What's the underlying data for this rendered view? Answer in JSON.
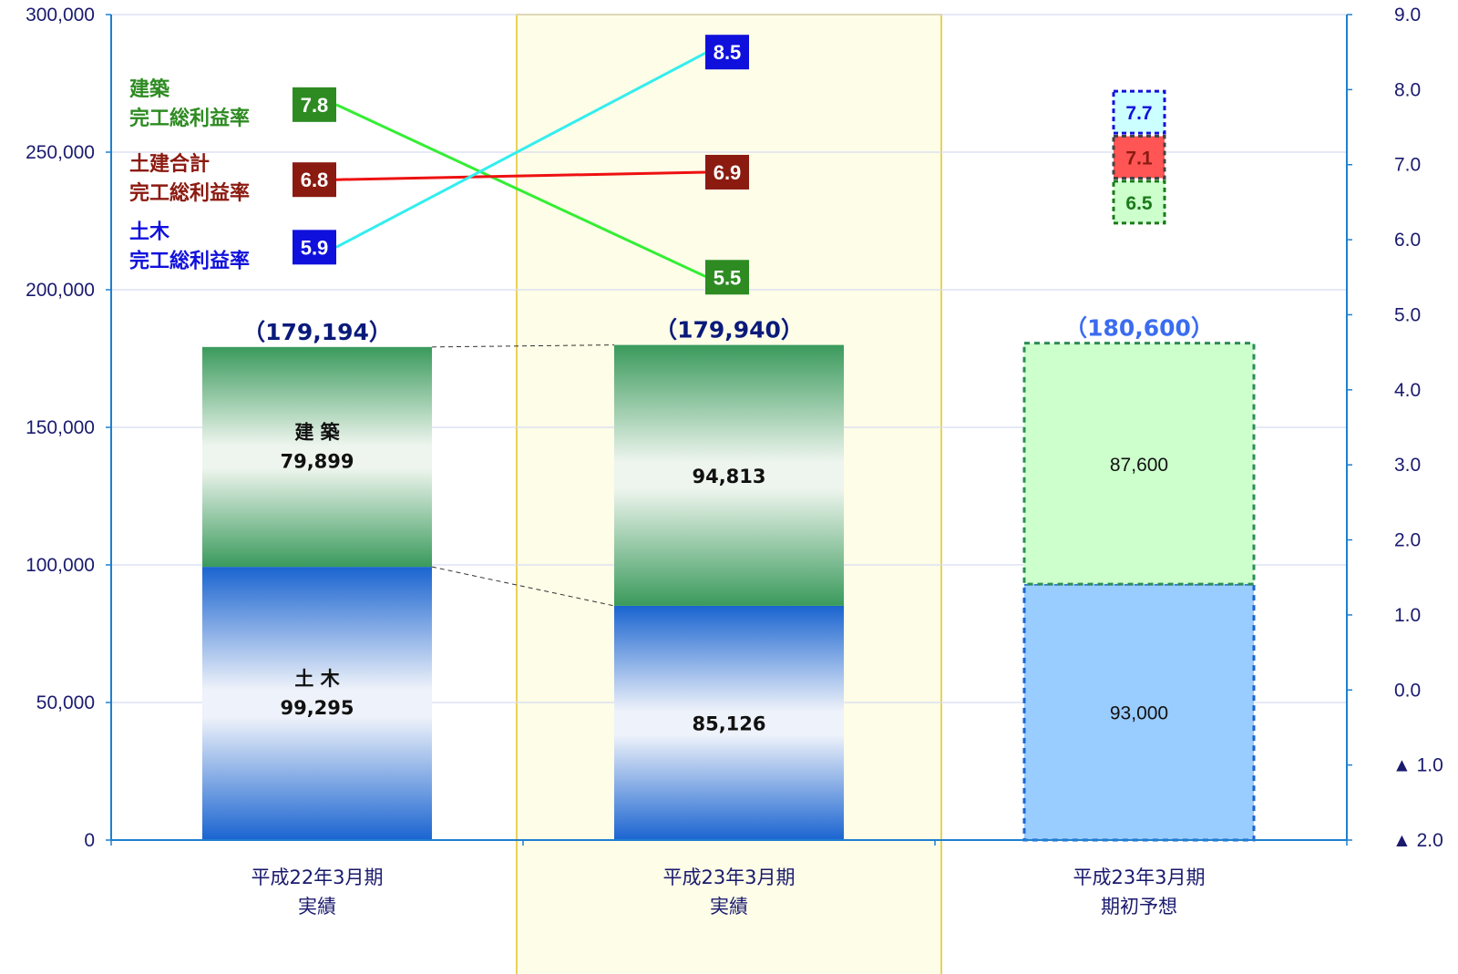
{
  "chart_data": {
    "type": "bar",
    "stacked": true,
    "categories": [
      [
        "平成22年3月期",
        "実績"
      ],
      [
        "平成23年3月期",
        "実績"
      ],
      [
        "平成23年3月期",
        "期初予想"
      ]
    ],
    "left_axis": {
      "ylim": [
        0,
        300000
      ],
      "ticks": [
        "0",
        "50,000",
        "100,000",
        "150,000",
        "200,000",
        "250,000",
        "300,000"
      ],
      "tick_values": [
        0,
        50000,
        100000,
        150000,
        200000,
        250000,
        300000
      ]
    },
    "right_axis": {
      "ylim": [
        -2,
        9
      ],
      "ticks": [
        "▲ 2.0",
        "▲ 1.0",
        "0.0",
        "1.0",
        "2.0",
        "3.0",
        "4.0",
        "5.0",
        "6.0",
        "7.0",
        "8.0",
        "9.0"
      ],
      "tick_values": [
        -2,
        -1,
        0,
        1,
        2,
        3,
        4,
        5,
        6,
        7,
        8,
        9
      ]
    },
    "grid": true,
    "bars": [
      {
        "total": 179194,
        "total_label": "（179,194）",
        "segments": [
          {
            "series": "doboku",
            "value": 99295,
            "label_name": "土 木",
            "label_value": "99,295"
          },
          {
            "series": "kenchiku",
            "value": 79899,
            "label_name": "建 築",
            "label_value": "79,899"
          }
        ]
      },
      {
        "total": 179940,
        "total_label": "（179,940）",
        "segments": [
          {
            "series": "doboku",
            "value": 85126,
            "label_name": "",
            "label_value": "85,126"
          },
          {
            "series": "kenchiku",
            "value": 94813,
            "label_name": "",
            "label_value": "94,813"
          }
        ]
      },
      {
        "total": 180600,
        "total_label": "（180,600）",
        "forecast": true,
        "segments": [
          {
            "series": "doboku",
            "value": 93000,
            "label_name": "",
            "label_value": "93,000"
          },
          {
            "series": "kenchiku",
            "value": 87600,
            "label_name": "",
            "label_value": "87,600"
          }
        ]
      }
    ],
    "line_series": [
      {
        "key": "kenchiku",
        "name": [
          "建築",
          "完工総利益率"
        ],
        "color": "#2e8b22",
        "line_color": "#33ee33",
        "values": [
          7.8,
          5.5
        ],
        "labels": [
          "7.8",
          "5.5"
        ]
      },
      {
        "key": "total",
        "name": [
          "土建合計",
          "完工総利益率"
        ],
        "color": "#8b1a10",
        "line_color": "#ee1111",
        "values": [
          6.8,
          6.9
        ],
        "labels": [
          "6.8",
          "6.9"
        ]
      },
      {
        "key": "doboku",
        "name": [
          "土木",
          "完工総利益率"
        ],
        "color": "#1010dd",
        "line_color": "#33eeee",
        "values": [
          5.9,
          8.5
        ],
        "labels": [
          "5.9",
          "8.5"
        ]
      }
    ],
    "forecast_points": [
      {
        "key": "doboku",
        "value": 7.7,
        "label": "7.7"
      },
      {
        "key": "total",
        "value": 7.1,
        "label": "7.1"
      },
      {
        "key": "kenchiku",
        "value": 6.5,
        "label": "6.5"
      }
    ],
    "highlight_category": 1
  },
  "colors": {
    "axis": "#1e7fd0",
    "grid": "#d8dcf0",
    "highlight_bg": "#fdfde8",
    "highlight_border": "#e8d25a",
    "total_label": "#0a1a7a",
    "forecast_total_label": "#3b6cf0",
    "doboku_top": "#1a64d0",
    "doboku_mid": "#eef2fa",
    "kenchiku_top": "#3a9a5c",
    "kenchiku_mid": "#eef5ee",
    "fc_kenchiku_fill": "#ccffcc",
    "fc_kenchiku_border": "#2e8b57",
    "fc_doboku_fill": "#99ccff",
    "fc_doboku_border": "#1a64d0",
    "fc_box_doboku_fill": "#ccffff",
    "fc_box_doboku_text": "#1010dd",
    "fc_box_total_fill": "#ff5555",
    "fc_box_total_text": "#8b1a10",
    "fc_box_kenchiku_fill": "#ccffcc",
    "fc_box_kenchiku_text": "#1a7a1a"
  }
}
